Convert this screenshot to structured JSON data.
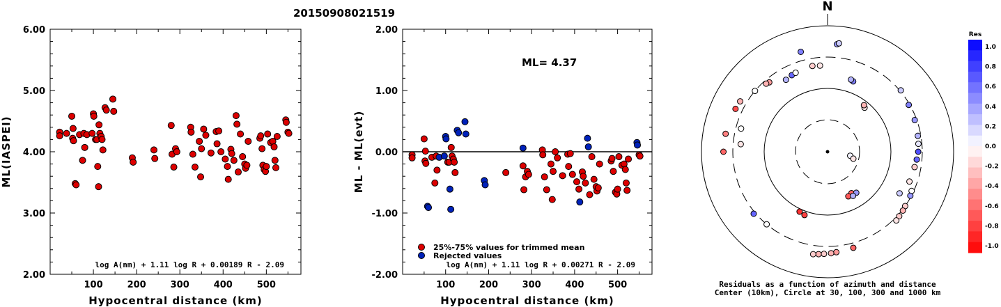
{
  "title": "20150908021519",
  "left_panel": {
    "ylabel": "ML(IASPEI)",
    "xlabel": "Hypocentral distance (km)",
    "formula": "log A(nm) + 1.11 log R + 0.00189 R - 2.09"
  },
  "mid_panel": {
    "ylabel": "ML - ML(evt)",
    "xlabel": "Hypocentral distance (km)",
    "formula": "log A(nm) + 1.11 log R + 0.00271 R - 2.09",
    "ml_label": "ML= 4.37",
    "legend_trimmed": "25%-75% values for trimmed mean",
    "legend_rejected": "Rejected values"
  },
  "polar_panel": {
    "north_label": "N",
    "caption_line1": "Residuals as a function of azimuth and distance",
    "caption_line2": "Center (10km), Circle at 30, 100, 300 and 1000 km"
  },
  "colorbar": {
    "title": "Res",
    "ticks": [
      "1.0",
      "0.8",
      "0.6",
      "0.4",
      "0.2",
      "0.0",
      "-0.2",
      "-0.4",
      "-0.6",
      "-0.8",
      "-1.0"
    ]
  },
  "colors": {
    "trimmed": "#dd0000",
    "rejected": "#0022bb"
  },
  "chart_data": [
    {
      "type": "scatter",
      "name": "ML vs distance",
      "xlim": [
        0,
        580
      ],
      "ylim": [
        2.0,
        6.0
      ],
      "xticks": [
        100,
        200,
        300,
        400,
        500
      ],
      "yticks": [
        "2.00",
        "3.00",
        "4.00",
        "5.00",
        "6.00"
      ],
      "points": [
        [
          22,
          4.32
        ],
        [
          22,
          4.26
        ],
        [
          38,
          4.3
        ],
        [
          50,
          4.58
        ],
        [
          52,
          4.22
        ],
        [
          53,
          4.38
        ],
        [
          54,
          4.18
        ],
        [
          58,
          3.48
        ],
        [
          60,
          3.46
        ],
        [
          68,
          4.28
        ],
        [
          75,
          3.86
        ],
        [
          78,
          4.3
        ],
        [
          80,
          4.07
        ],
        [
          85,
          4.28
        ],
        [
          97,
          4.3
        ],
        [
          100,
          4.62
        ],
        [
          101,
          4.58
        ],
        [
          105,
          4.2
        ],
        [
          108,
          4.2
        ],
        [
          110,
          3.76
        ],
        [
          112,
          3.43
        ],
        [
          113,
          4.44
        ],
        [
          115,
          4.3
        ],
        [
          118,
          4.25
        ],
        [
          120,
          4.2
        ],
        [
          122,
          4.03
        ],
        [
          127,
          4.72
        ],
        [
          130,
          4.68
        ],
        [
          145,
          4.86
        ],
        [
          147,
          4.66
        ],
        [
          190,
          3.9
        ],
        [
          192,
          3.83
        ],
        [
          240,
          4.03
        ],
        [
          242,
          3.89
        ],
        [
          280,
          4.43
        ],
        [
          282,
          3.96
        ],
        [
          286,
          3.75
        ],
        [
          290,
          4.05
        ],
        [
          293,
          4.0
        ],
        [
          325,
          4.4
        ],
        [
          326,
          4.32
        ],
        [
          330,
          3.96
        ],
        [
          335,
          3.75
        ],
        [
          345,
          4.17
        ],
        [
          348,
          3.59
        ],
        [
          350,
          4.05
        ],
        [
          355,
          4.37
        ],
        [
          360,
          4.27
        ],
        [
          372,
          3.98
        ],
        [
          384,
          4.33
        ],
        [
          386,
          4.13
        ],
        [
          390,
          4.34
        ],
        [
          395,
          4.0
        ],
        [
          405,
          3.88
        ],
        [
          410,
          3.76
        ],
        [
          412,
          3.55
        ],
        [
          418,
          4.04
        ],
        [
          420,
          3.97
        ],
        [
          425,
          3.86
        ],
        [
          430,
          4.59
        ],
        [
          432,
          4.45
        ],
        [
          435,
          3.67
        ],
        [
          440,
          4.29
        ],
        [
          445,
          3.92
        ],
        [
          450,
          3.8
        ],
        [
          452,
          3.73
        ],
        [
          455,
          3.78
        ],
        [
          458,
          4.17
        ],
        [
          485,
          4.22
        ],
        [
          487,
          4.26
        ],
        [
          490,
          4.05
        ],
        [
          492,
          3.78
        ],
        [
          495,
          3.71
        ],
        [
          498,
          3.68
        ],
        [
          500,
          3.76
        ],
        [
          503,
          4.29
        ],
        [
          510,
          4.15
        ],
        [
          515,
          4.17
        ],
        [
          518,
          4.08
        ],
        [
          520,
          3.86
        ],
        [
          522,
          3.74
        ],
        [
          525,
          4.25
        ],
        [
          545,
          4.52
        ],
        [
          546,
          4.48
        ],
        [
          550,
          4.32
        ],
        [
          552,
          4.3
        ]
      ]
    },
    {
      "type": "scatter",
      "name": "ML residual vs distance",
      "xlim": [
        0,
        580
      ],
      "ylim": [
        -2.0,
        2.0
      ],
      "xticks": [
        100,
        200,
        300,
        400,
        500
      ],
      "yticks": [
        "-2.00",
        "-1.00",
        "0.00",
        "1.00",
        "2.00"
      ],
      "reference_line": 0.0,
      "series": [
        {
          "name": "25%-75% values for trimmed mean",
          "points": [
            [
              22,
              -0.05
            ],
            [
              22,
              -0.1
            ],
            [
              50,
              0.21
            ],
            [
              52,
              -0.15
            ],
            [
              53,
              0.01
            ],
            [
              54,
              -0.19
            ],
            [
              68,
              -0.09
            ],
            [
              75,
              -0.51
            ],
            [
              78,
              -0.07
            ],
            [
              80,
              -0.3
            ],
            [
              105,
              -0.17
            ],
            [
              108,
              -0.17
            ],
            [
              113,
              0.07
            ],
            [
              115,
              -0.07
            ],
            [
              118,
              -0.12
            ],
            [
              120,
              -0.17
            ],
            [
              122,
              -0.34
            ],
            [
              240,
              -0.34
            ],
            [
              280,
              -0.23
            ],
            [
              282,
              -0.62
            ],
            [
              286,
              -0.41
            ],
            [
              290,
              -0.32
            ],
            [
              293,
              -0.37
            ],
            [
              325,
              0.03
            ],
            [
              326,
              -0.05
            ],
            [
              330,
              -0.41
            ],
            [
              335,
              -0.62
            ],
            [
              345,
              -0.2
            ],
            [
              348,
              -0.78
            ],
            [
              350,
              -0.32
            ],
            [
              355,
              0.0
            ],
            [
              360,
              -0.1
            ],
            [
              372,
              -0.39
            ],
            [
              384,
              -0.04
            ],
            [
              386,
              -0.24
            ],
            [
              390,
              -0.03
            ],
            [
              395,
              -0.37
            ],
            [
              405,
              -0.49
            ],
            [
              410,
              -0.61
            ],
            [
              418,
              -0.33
            ],
            [
              420,
              -0.4
            ],
            [
              425,
              -0.51
            ],
            [
              435,
              -0.7
            ],
            [
              440,
              -0.08
            ],
            [
              445,
              -0.45
            ],
            [
              450,
              -0.57
            ],
            [
              452,
              -0.64
            ],
            [
              455,
              -0.59
            ],
            [
              458,
              -0.2
            ],
            [
              485,
              -0.15
            ],
            [
              487,
              -0.11
            ],
            [
              490,
              -0.32
            ],
            [
              495,
              -0.66
            ],
            [
              498,
              -0.69
            ],
            [
              500,
              -0.61
            ],
            [
              503,
              -0.08
            ],
            [
              510,
              -0.22
            ],
            [
              515,
              -0.2
            ],
            [
              518,
              -0.29
            ],
            [
              520,
              -0.51
            ],
            [
              522,
              -0.63
            ],
            [
              525,
              -0.12
            ],
            [
              550,
              -0.05
            ],
            [
              552,
              -0.07
            ]
          ]
        },
        {
          "name": "Rejected values",
          "points": [
            [
              58,
              -0.89
            ],
            [
              60,
              -0.91
            ],
            [
              85,
              -0.09
            ],
            [
              97,
              -0.07
            ],
            [
              100,
              0.25
            ],
            [
              101,
              0.21
            ],
            [
              110,
              -0.61
            ],
            [
              112,
              -0.94
            ],
            [
              127,
              0.35
            ],
            [
              130,
              0.31
            ],
            [
              145,
              0.49
            ],
            [
              147,
              0.29
            ],
            [
              190,
              -0.47
            ],
            [
              192,
              -0.54
            ],
            [
              280,
              0.06
            ],
            [
              412,
              -0.82
            ],
            [
              430,
              0.22
            ],
            [
              432,
              0.08
            ],
            [
              545,
              0.15
            ],
            [
              546,
              0.11
            ]
          ]
        }
      ]
    },
    {
      "type": "scatter",
      "name": "Residuals as a function of azimuth and distance",
      "rings_km": [
        10,
        30,
        100,
        300,
        1000
      ],
      "color_range": [
        -1.0,
        1.0
      ],
      "stations": [
        {
          "az": 100,
          "dist": 22,
          "res": 0.05
        },
        {
          "az": 105,
          "dist": 25,
          "res": -0.1
        },
        {
          "az": 150,
          "dist": 55,
          "res": -0.6
        },
        {
          "az": 155,
          "dist": 58,
          "res": -0.65
        },
        {
          "az": 145,
          "dist": 60,
          "res": 0.4
        },
        {
          "az": 150,
          "dist": 62,
          "res": 0.3
        },
        {
          "az": 40,
          "dist": 80,
          "res": -0.1
        },
        {
          "az": 38,
          "dist": 85,
          "res": -0.3
        },
        {
          "az": 205,
          "dist": 110,
          "res": -0.8
        },
        {
          "az": 200,
          "dist": 115,
          "res": -0.75
        },
        {
          "az": 20,
          "dist": 150,
          "res": 0.5
        },
        {
          "az": 18,
          "dist": 155,
          "res": 0.3
        },
        {
          "az": 120,
          "dist": 200,
          "res": 0.2
        },
        {
          "az": 110,
          "dist": 230,
          "res": -0.1
        },
        {
          "az": 100,
          "dist": 240,
          "res": -0.2
        },
        {
          "az": 95,
          "dist": 250,
          "res": 0.6
        },
        {
          "az": 90,
          "dist": 260,
          "res": 0.7
        },
        {
          "az": 85,
          "dist": 265,
          "res": 0.1
        },
        {
          "az": 80,
          "dist": 270,
          "res": 0.3
        },
        {
          "az": 70,
          "dist": 280,
          "res": 0.4
        },
        {
          "az": 60,
          "dist": 290,
          "res": 0.5
        },
        {
          "az": 50,
          "dist": 310,
          "res": 0.2
        },
        {
          "az": 115,
          "dist": 280,
          "res": 0.0
        },
        {
          "az": 118,
          "dist": 290,
          "res": 0.4
        },
        {
          "az": 125,
          "dist": 300,
          "res": -0.2
        },
        {
          "az": 128,
          "dist": 310,
          "res": -0.3
        },
        {
          "az": 132,
          "dist": 320,
          "res": -0.2
        },
        {
          "az": 135,
          "dist": 330,
          "res": -0.1
        },
        {
          "az": 175,
          "dist": 380,
          "res": -0.4
        },
        {
          "az": 178,
          "dist": 390,
          "res": -0.3
        },
        {
          "az": 182,
          "dist": 400,
          "res": -0.2
        },
        {
          "az": 185,
          "dist": 410,
          "res": -0.3
        },
        {
          "az": 188,
          "dist": 420,
          "res": -0.2
        },
        {
          "az": 165,
          "dist": 360,
          "res": -0.6
        },
        {
          "az": 220,
          "dist": 300,
          "res": 0.0
        },
        {
          "az": 230,
          "dist": 320,
          "res": 0.6
        },
        {
          "az": 300,
          "dist": 380,
          "res": -0.3
        },
        {
          "az": 295,
          "dist": 390,
          "res": -0.7
        },
        {
          "az": 280,
          "dist": 420,
          "res": -0.5
        },
        {
          "az": 270,
          "dist": 430,
          "res": -0.6
        },
        {
          "az": 285,
          "dist": 250,
          "res": 0.0
        },
        {
          "az": 275,
          "dist": 230,
          "res": -0.1
        },
        {
          "az": 320,
          "dist": 260,
          "res": -0.4
        },
        {
          "az": 318,
          "dist": 270,
          "res": -0.3
        },
        {
          "az": 330,
          "dist": 200,
          "res": 0.3
        },
        {
          "az": 335,
          "dist": 210,
          "res": 0.6
        },
        {
          "az": 338,
          "dist": 215,
          "res": 0.0
        },
        {
          "az": 345,
          "dist": 420,
          "res": 0.5
        },
        {
          "az": 5,
          "dist": 500,
          "res": 0.4
        },
        {
          "az": 6,
          "dist": 520,
          "res": 0.2
        },
        {
          "az": 350,
          "dist": 230,
          "res": -0.2
        },
        {
          "az": 355,
          "dist": 225,
          "res": -0.1
        },
        {
          "az": 310,
          "dist": 300,
          "res": 0.0
        }
      ]
    }
  ]
}
